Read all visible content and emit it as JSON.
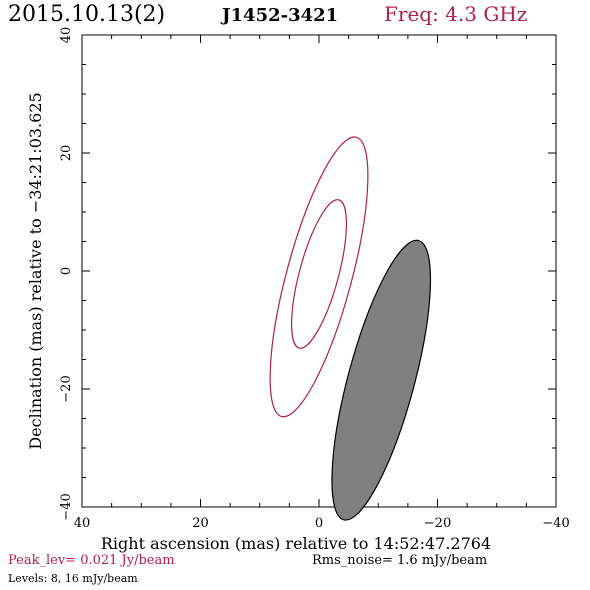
{
  "header": {
    "date": "2015.10.13(2)",
    "source": "J1452-3421",
    "freq": "Freq: 4.3 GHz",
    "freq_color": "#b0204a"
  },
  "chart_data": {
    "type": "contour",
    "xlabel": "Right ascension (mas) relative to 14:52:47.2764",
    "ylabel": "Declination (mas) relative to −34:21:03.625",
    "xlim": [
      40,
      -40
    ],
    "ylim": [
      -40,
      40
    ],
    "x_ticks": [
      40,
      20,
      0,
      -20,
      -40
    ],
    "x_tick_labels": [
      "40",
      "20",
      "0",
      "−20",
      "−40"
    ],
    "y_ticks": [
      -40,
      -20,
      0,
      20,
      40
    ],
    "y_tick_labels": [
      "−40",
      "−20",
      "0",
      "20",
      "40"
    ],
    "contour_color": "#b0204a",
    "contours": [
      {
        "level_mjy": 8,
        "center": [
          0,
          -1.0
        ],
        "semi_major": 24.5,
        "semi_minor": 5.5,
        "pa_deg": 15
      },
      {
        "level_mjy": 16,
        "center": [
          0,
          -0.5
        ],
        "semi_major": 13.0,
        "semi_minor": 3.3,
        "pa_deg": 15
      }
    ],
    "beam": {
      "center": [
        -10.5,
        -18.5
      ],
      "semi_major": 24.5,
      "semi_minor": 5.6,
      "pa_deg": 15,
      "fill": "#808080"
    }
  },
  "footer": {
    "peak": "Peak_lev=  0.021 Jy/beam",
    "rms": "Rms_noise=  1.6 mJy/beam",
    "levels": "Levels:   8,  16 mJy/beam",
    "peak_color": "#b0204a"
  }
}
